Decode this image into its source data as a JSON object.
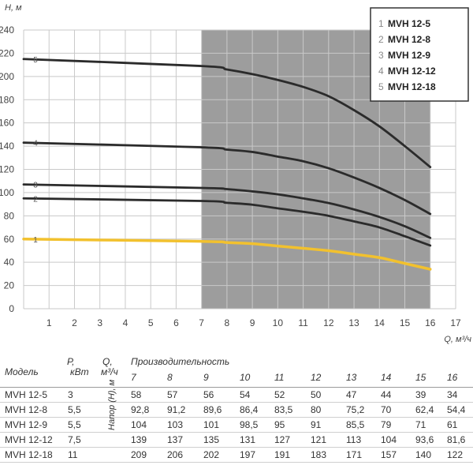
{
  "chart_data": {
    "type": "line",
    "ylabel": "H, м",
    "xlabel": "Q, м³/ч",
    "ylim": [
      0,
      240
    ],
    "xlim": [
      0,
      17
    ],
    "yticks": [
      "0",
      "20",
      "40",
      "60",
      "80",
      "100",
      "120",
      "140",
      "160",
      "180",
      "200",
      "220",
      "240"
    ],
    "xticks": [
      "1",
      "2",
      "3",
      "4",
      "5",
      "6",
      "7",
      "8",
      "9",
      "10",
      "11",
      "12",
      "13",
      "14",
      "15",
      "16",
      "17"
    ],
    "shaded_range": [
      7,
      16
    ],
    "grid": true,
    "legend_position": "top-right",
    "series": [
      {
        "label": "1",
        "name": "MVH 12-5",
        "color": "#f2c12e",
        "x": [
          0,
          7,
          8,
          9,
          10,
          11,
          12,
          13,
          14,
          15,
          16
        ],
        "y": [
          60,
          58,
          57,
          56,
          54,
          52,
          50,
          47,
          44,
          39,
          34
        ]
      },
      {
        "label": "2",
        "name": "MVH 12-8",
        "color": "#2b2b2b",
        "x": [
          0,
          7,
          8,
          9,
          10,
          11,
          12,
          13,
          14,
          15,
          16
        ],
        "y": [
          95,
          92.8,
          91.2,
          89.6,
          86.4,
          83.5,
          80,
          75.2,
          70,
          62.4,
          54.4
        ]
      },
      {
        "label": "3",
        "name": "MVH 12-9",
        "color": "#2b2b2b",
        "x": [
          0,
          7,
          8,
          9,
          10,
          11,
          12,
          13,
          14,
          15,
          16
        ],
        "y": [
          107,
          104,
          103,
          101,
          98.5,
          95,
          91,
          85.5,
          79,
          71,
          61
        ]
      },
      {
        "label": "4",
        "name": "MVH 12-12",
        "color": "#2b2b2b",
        "x": [
          0,
          7,
          8,
          9,
          10,
          11,
          12,
          13,
          14,
          15,
          16
        ],
        "y": [
          143,
          139,
          137,
          135,
          131,
          127,
          121,
          113,
          104,
          93.6,
          81.6
        ]
      },
      {
        "label": "5",
        "name": "MVH 12-18",
        "color": "#2b2b2b",
        "x": [
          0,
          7,
          8,
          9,
          10,
          11,
          12,
          13,
          14,
          15,
          16
        ],
        "y": [
          215,
          209,
          206,
          202,
          197,
          191,
          183,
          171,
          157,
          140,
          122
        ]
      }
    ]
  },
  "table": {
    "headers": {
      "model": "Модель",
      "power": "Р,",
      "power_unit": "кВт",
      "flow": "Q,",
      "flow_unit": "м³/ч",
      "performance": "Производительность",
      "head_label": "Напор (H), м"
    },
    "q_values": [
      "7",
      "8",
      "9",
      "10",
      "11",
      "12",
      "13",
      "14",
      "15",
      "16"
    ],
    "rows": [
      {
        "model": "MVH 12-5",
        "power": "3",
        "values": [
          "58",
          "57",
          "56",
          "54",
          "52",
          "50",
          "47",
          "44",
          "39",
          "34"
        ]
      },
      {
        "model": "MVH 12-8",
        "power": "5,5",
        "values": [
          "92,8",
          "91,2",
          "89,6",
          "86,4",
          "83,5",
          "80",
          "75,2",
          "70",
          "62,4",
          "54,4"
        ]
      },
      {
        "model": "MVH 12-9",
        "power": "5,5",
        "values": [
          "104",
          "103",
          "101",
          "98,5",
          "95",
          "91",
          "85,5",
          "79",
          "71",
          "61"
        ]
      },
      {
        "model": "MVH 12-12",
        "power": "7,5",
        "values": [
          "139",
          "137",
          "135",
          "131",
          "127",
          "121",
          "113",
          "104",
          "93,6",
          "81,6"
        ]
      },
      {
        "model": "MVH 12-18",
        "power": "11",
        "values": [
          "209",
          "206",
          "202",
          "197",
          "191",
          "183",
          "171",
          "157",
          "140",
          "122"
        ]
      }
    ]
  }
}
